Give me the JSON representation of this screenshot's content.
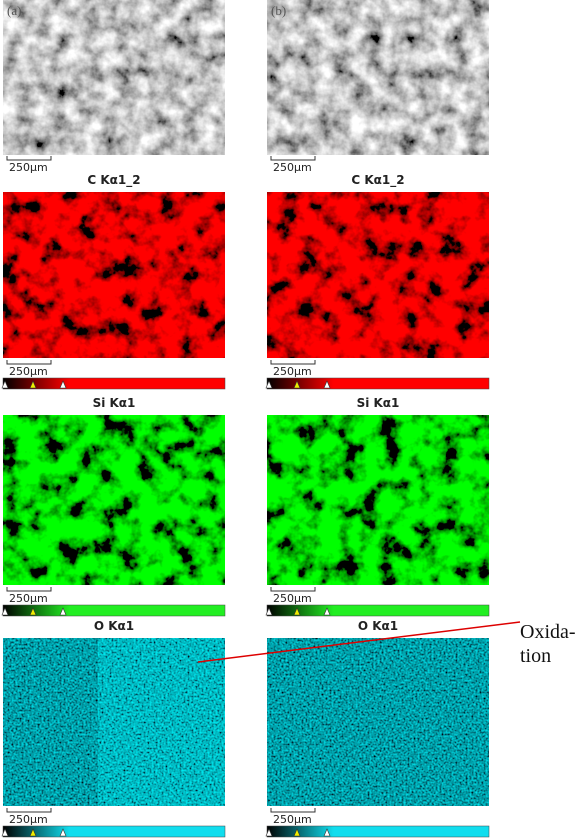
{
  "columns": [
    {
      "label": "(a)",
      "sem_scale": "250µm",
      "maps": [
        {
          "title": "C Kα1_2",
          "scale": "250µm"
        },
        {
          "title": "Si Kα1",
          "scale": "250µm"
        },
        {
          "title": "O Kα1",
          "scale": "250µm"
        }
      ]
    },
    {
      "label": "(b)",
      "sem_scale": "250µm",
      "maps": [
        {
          "title": "C Kα1_2",
          "scale": "250µm"
        },
        {
          "title": "Si Kα1",
          "scale": "250µm"
        },
        {
          "title": "O Kα1",
          "scale": "250µm"
        }
      ]
    }
  ],
  "annotation": [
    "Oxida-",
    "tion"
  ]
}
